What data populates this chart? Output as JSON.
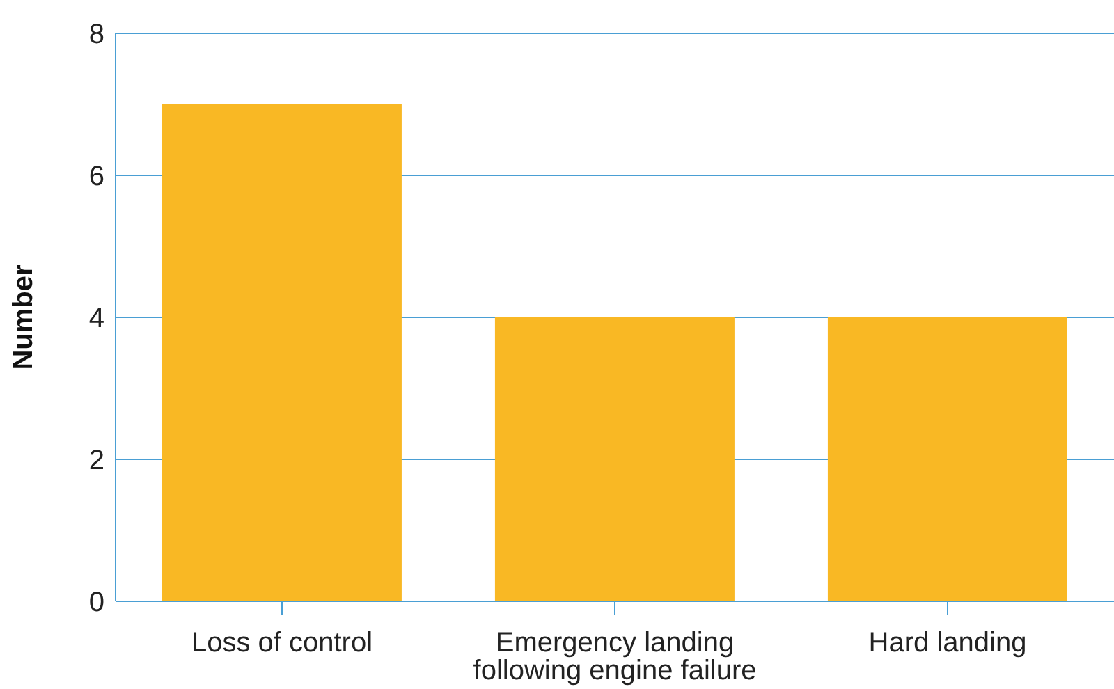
{
  "chart_data": {
    "type": "bar",
    "ylabel": "Number",
    "categories": [
      "Loss of control",
      "Emergency landing following engine failure",
      "Hard landing"
    ],
    "values": [
      7,
      4,
      4
    ],
    "color": "#f9b824",
    "ylim": [
      0,
      8
    ],
    "yticks": [
      0,
      2,
      4,
      6,
      8
    ],
    "grid": "y",
    "legend": false
  }
}
